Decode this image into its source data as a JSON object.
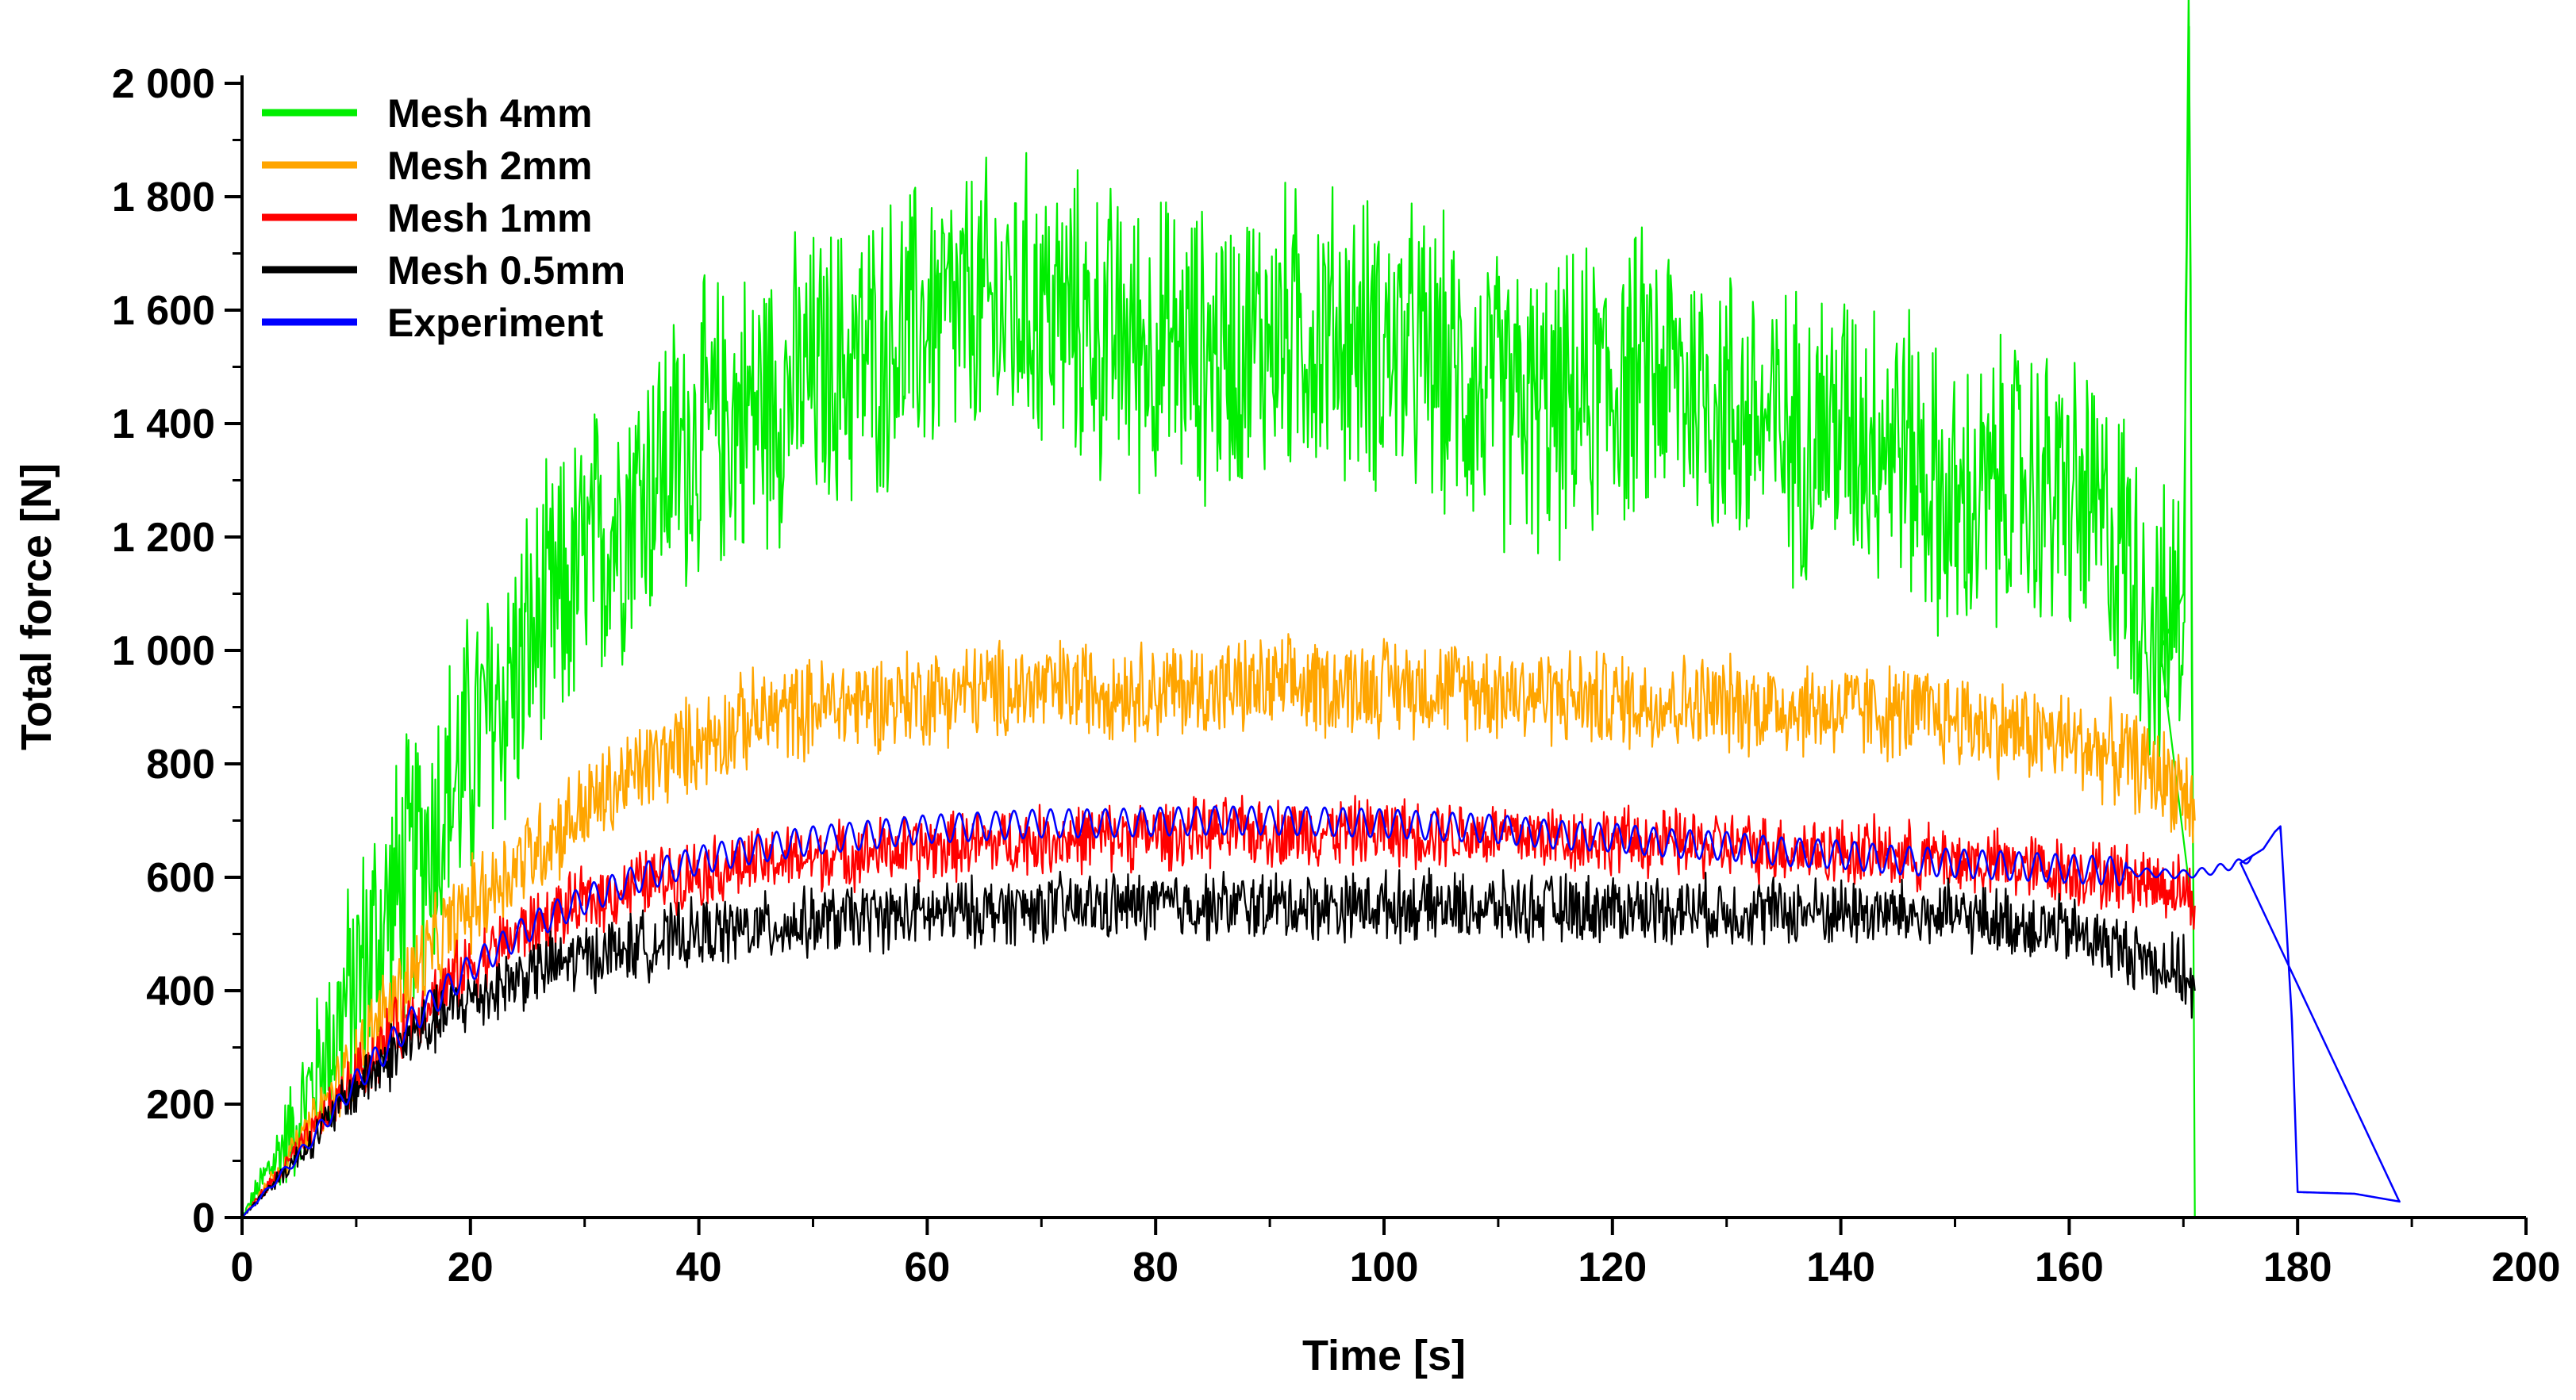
{
  "chart_data": {
    "type": "line",
    "title": "",
    "xlabel": "Time [s]",
    "ylabel": "Total force [N]",
    "xlim": [
      0,
      200
    ],
    "ylim": [
      0,
      2000
    ],
    "x_ticks": [
      0,
      20,
      40,
      60,
      80,
      100,
      120,
      140,
      160,
      180,
      200
    ],
    "x_tick_labels": [
      "0",
      "20",
      "40",
      "60",
      "80",
      "100",
      "120",
      "140",
      "160",
      "180",
      "200"
    ],
    "y_ticks": [
      0,
      200,
      400,
      600,
      800,
      1000,
      1200,
      1400,
      1600,
      1800,
      2000
    ],
    "y_tick_labels": [
      "0",
      "200",
      "400",
      "600",
      "800",
      "1 000",
      "1 200",
      "1 400",
      "1 600",
      "1 800",
      "2 000"
    ],
    "grid": false,
    "legend_position": "top-left",
    "series": [
      {
        "name": "Mesh 4mm",
        "color": "#00ee00",
        "x": [
          0,
          5,
          10,
          15,
          20,
          25,
          30,
          35,
          40,
          45,
          50,
          55,
          60,
          65,
          70,
          75,
          80,
          85,
          90,
          95,
          100,
          105,
          110,
          115,
          120,
          125,
          130,
          135,
          140,
          145,
          150,
          155,
          160,
          165,
          168,
          170,
          170.5,
          171
        ],
        "y": [
          0,
          180,
          420,
          620,
          820,
          1000,
          1150,
          1290,
          1380,
          1430,
          1480,
          1520,
          1580,
          1600,
          1610,
          1560,
          1540,
          1520,
          1560,
          1560,
          1540,
          1500,
          1440,
          1420,
          1470,
          1490,
          1430,
          1380,
          1400,
          1380,
          1230,
          1300,
          1270,
          1180,
          1000,
          1100,
          2100,
          0
        ],
        "noise": 300
      },
      {
        "name": "Mesh 2mm",
        "color": "#ffa500",
        "x": [
          0,
          5,
          10,
          15,
          20,
          25,
          30,
          35,
          40,
          45,
          50,
          55,
          60,
          65,
          70,
          75,
          80,
          85,
          90,
          95,
          100,
          105,
          110,
          115,
          120,
          125,
          130,
          135,
          140,
          145,
          150,
          155,
          160,
          165,
          170,
          171
        ],
        "y": [
          0,
          130,
          280,
          430,
          550,
          640,
          720,
          790,
          840,
          880,
          900,
          910,
          920,
          930,
          930,
          935,
          930,
          930,
          935,
          935,
          940,
          935,
          930,
          920,
          910,
          910,
          905,
          900,
          895,
          890,
          880,
          860,
          840,
          810,
          760,
          700
        ],
        "noise": 100
      },
      {
        "name": "Mesh 1mm",
        "color": "#ff0000",
        "x": [
          0,
          5,
          10,
          15,
          20,
          25,
          30,
          35,
          40,
          45,
          50,
          55,
          60,
          65,
          70,
          75,
          80,
          85,
          90,
          95,
          100,
          105,
          110,
          115,
          120,
          125,
          130,
          135,
          140,
          145,
          150,
          155,
          160,
          165,
          170,
          171
        ],
        "y": [
          0,
          120,
          250,
          360,
          445,
          510,
          555,
          590,
          610,
          625,
          635,
          645,
          650,
          660,
          665,
          670,
          675,
          678,
          680,
          680,
          680,
          678,
          675,
          670,
          665,
          660,
          655,
          650,
          645,
          640,
          630,
          620,
          610,
          600,
          580,
          550
        ],
        "noise": 70
      },
      {
        "name": "Mesh 0.5mm",
        "color": "#000000",
        "x": [
          0,
          5,
          10,
          15,
          20,
          25,
          30,
          35,
          40,
          45,
          50,
          55,
          60,
          65,
          70,
          75,
          80,
          85,
          90,
          95,
          100,
          105,
          110,
          115,
          120,
          125,
          130,
          135,
          140,
          145,
          150,
          155,
          160,
          165,
          170,
          171
        ],
        "y": [
          0,
          110,
          230,
          320,
          385,
          430,
          460,
          480,
          500,
          510,
          520,
          530,
          535,
          540,
          545,
          548,
          550,
          550,
          550,
          550,
          550,
          548,
          545,
          545,
          545,
          545,
          540,
          540,
          540,
          535,
          530,
          520,
          505,
          470,
          430,
          400
        ],
        "noise": 70
      },
      {
        "name": "Experiment",
        "color": "#0000ff",
        "x": [
          0,
          5,
          10,
          15,
          20,
          25,
          30,
          35,
          40,
          45,
          50,
          55,
          60,
          65,
          70,
          75,
          80,
          85,
          90,
          95,
          100,
          105,
          110,
          115,
          120,
          125,
          130,
          135,
          140,
          145,
          150,
          155,
          160,
          165,
          170,
          172,
          175,
          177,
          178,
          178.5,
          179.5,
          180,
          185,
          189
        ],
        "y": [
          0,
          110,
          240,
          350,
          440,
          510,
          560,
          600,
          630,
          650,
          665,
          675,
          685,
          690,
          695,
          695,
          698,
          700,
          700,
          698,
          695,
          690,
          685,
          675,
          670,
          660,
          655,
          645,
          640,
          630,
          625,
          620,
          615,
          610,
          605,
          610,
          625,
          650,
          680,
          690,
          350,
          45,
          42,
          28
        ],
        "noise": 25
      }
    ]
  }
}
